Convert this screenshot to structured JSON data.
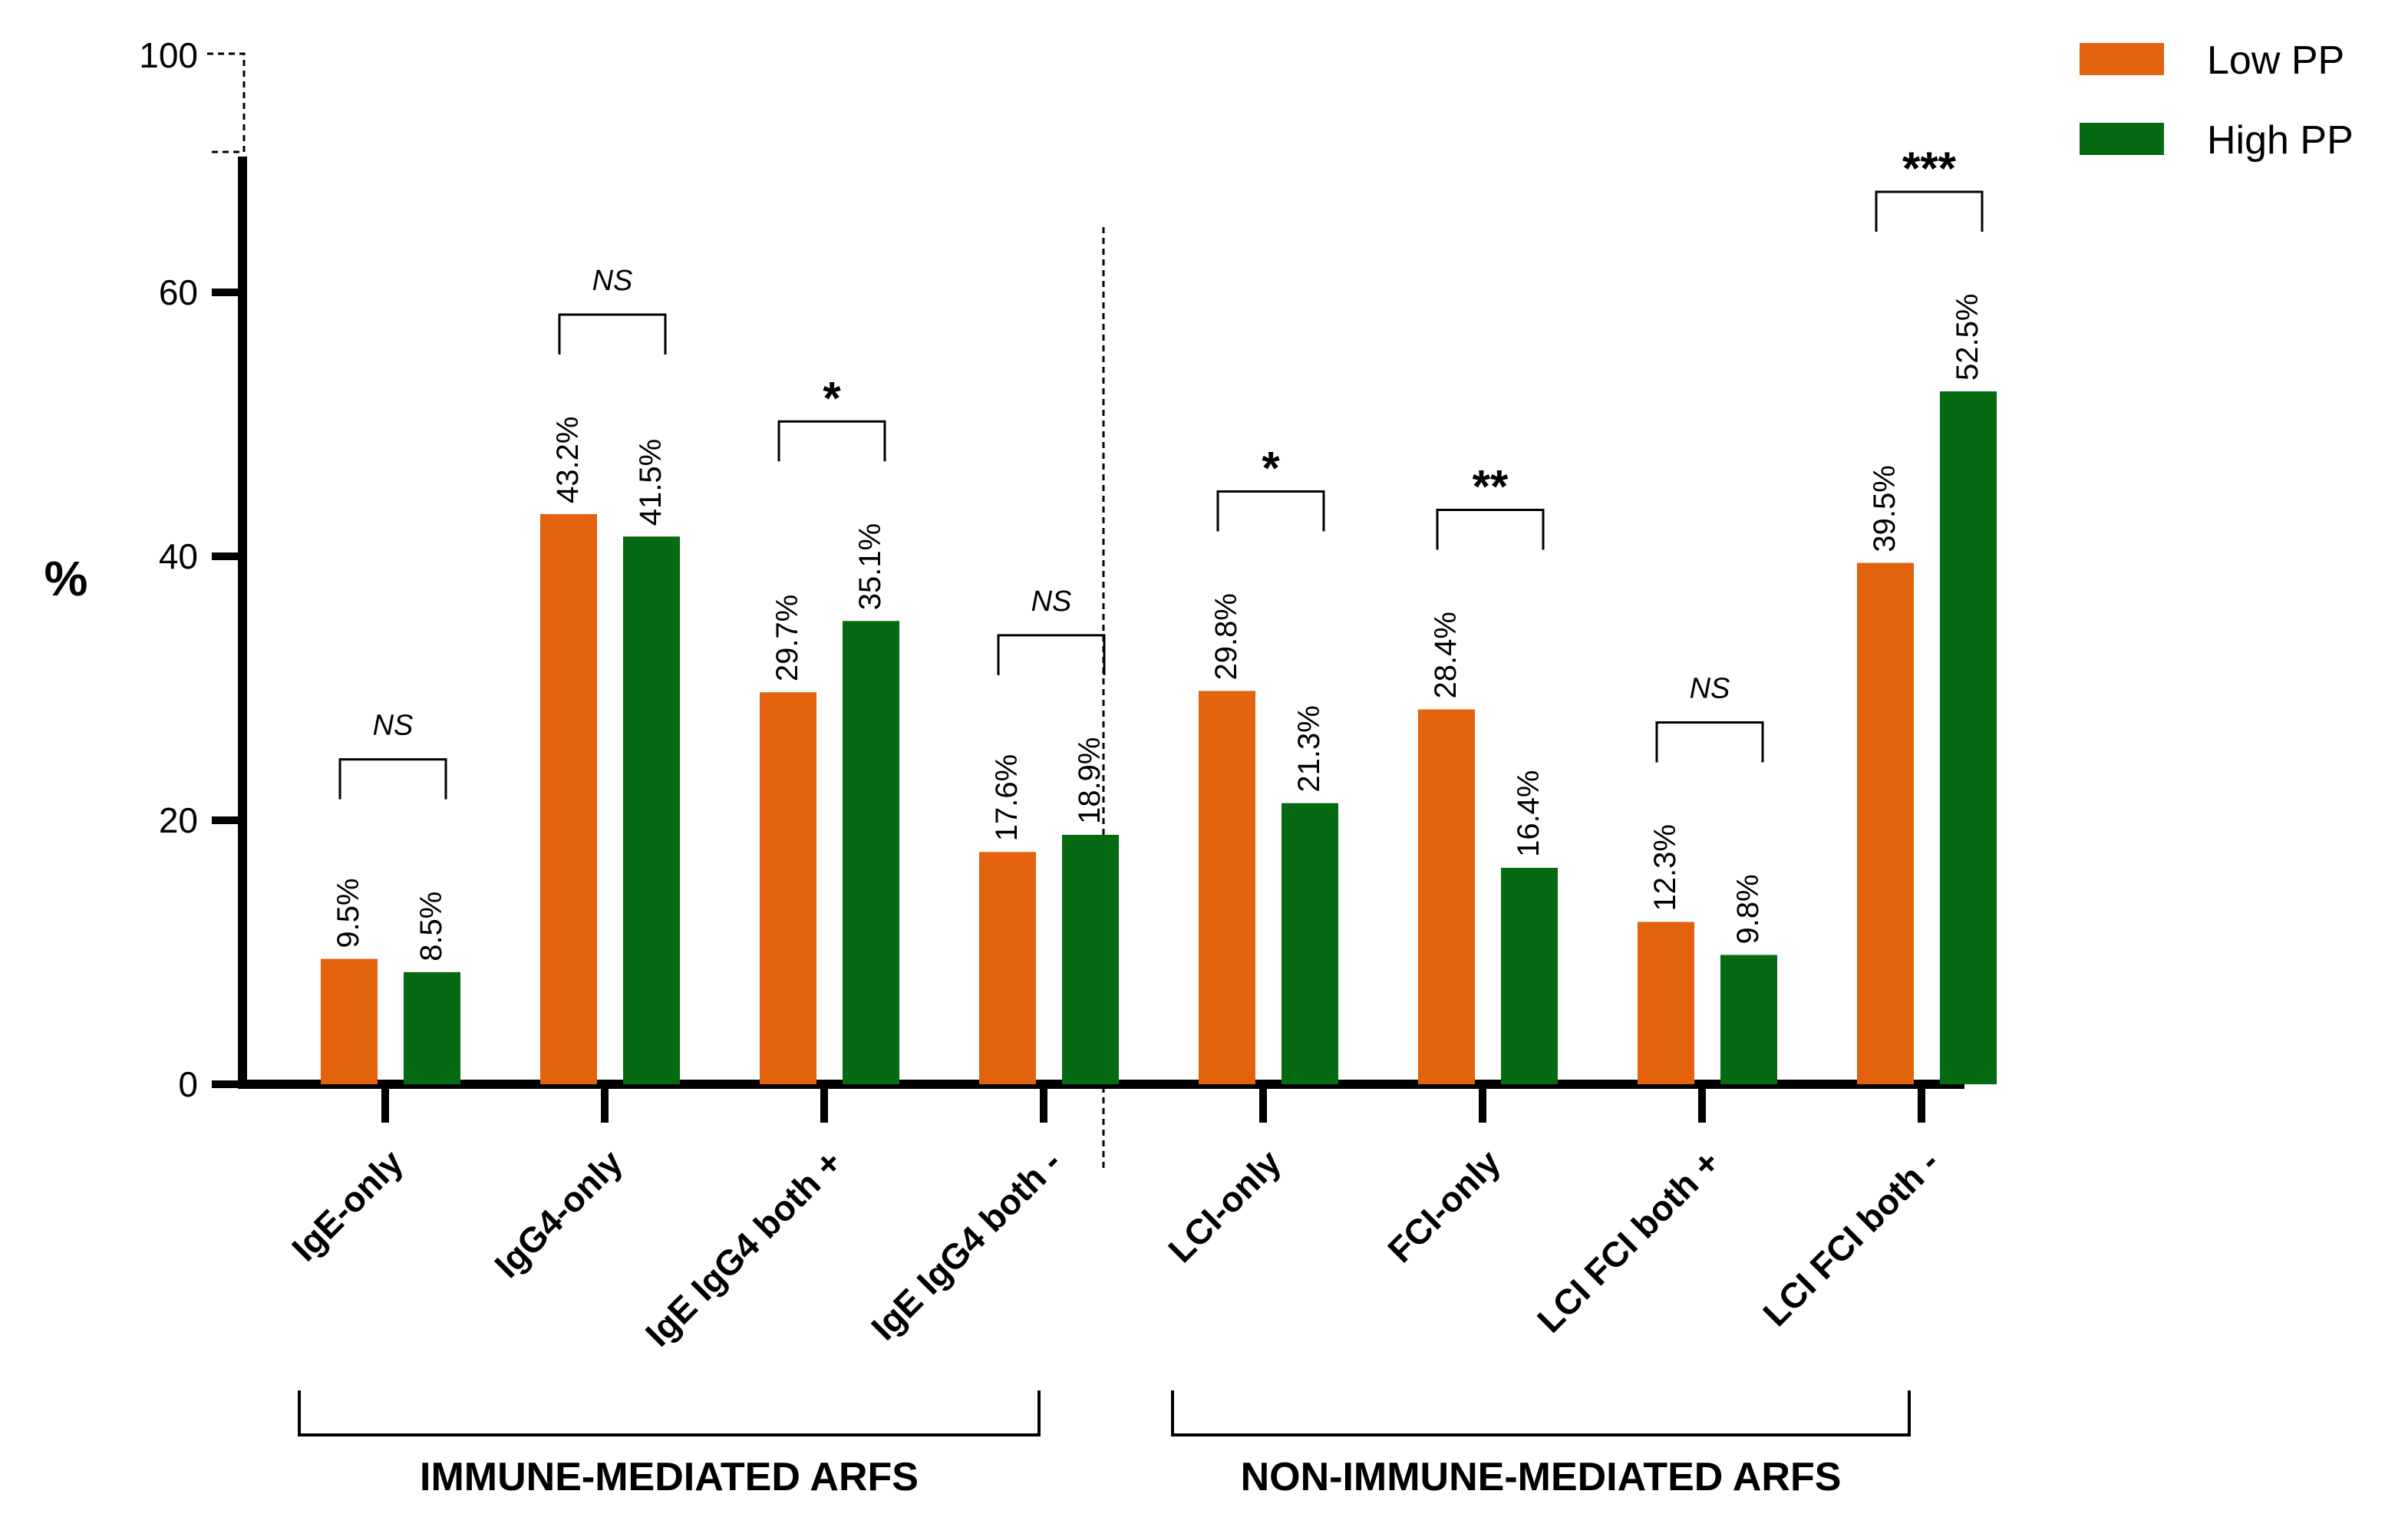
{
  "chart_data": {
    "type": "bar",
    "title": "",
    "xlabel": "",
    "ylabel": "%",
    "ylim": [
      0,
      100
    ],
    "yticks": [
      "0",
      "20",
      "40",
      "60",
      "100"
    ],
    "axis_break": "between 70 and 100",
    "categories": [
      "IgE-only",
      "IgG4-only",
      "IgE IgG4 both +",
      "IgE IgG4 both -",
      "LCI-only",
      "FCI-only",
      "LCI FCI both +",
      "LCI FCI both -"
    ],
    "series": [
      {
        "name": "Low PP",
        "color": "#E3620E",
        "values": [
          9.5,
          43.2,
          29.7,
          17.6,
          29.8,
          28.4,
          12.3,
          39.5
        ],
        "labels": [
          "9.5%",
          "43.2%",
          "29.7%",
          "17.6%",
          "29.8%",
          "28.4%",
          "12.3%",
          "39.5%"
        ]
      },
      {
        "name": "High PP",
        "color": "#056A12",
        "values": [
          8.5,
          41.5,
          35.1,
          18.9,
          21.3,
          16.4,
          9.8,
          52.5
        ],
        "labels": [
          "8.5%",
          "41.5%",
          "35.1%",
          "18.9%",
          "21.3%",
          "16.4%",
          "9.8%",
          "52.5%"
        ]
      }
    ],
    "significance": [
      "NS",
      "NS",
      "*",
      "NS",
      "*",
      "**",
      "NS",
      "***"
    ],
    "groups": [
      {
        "label": "IMMUNE-MEDIATED ARFS",
        "categories": [
          0,
          3
        ]
      },
      {
        "label": "NON-IMMUNE-MEDIATED ARFS",
        "categories": [
          4,
          7
        ]
      }
    ],
    "legend_position": "top-right",
    "grid": false
  }
}
